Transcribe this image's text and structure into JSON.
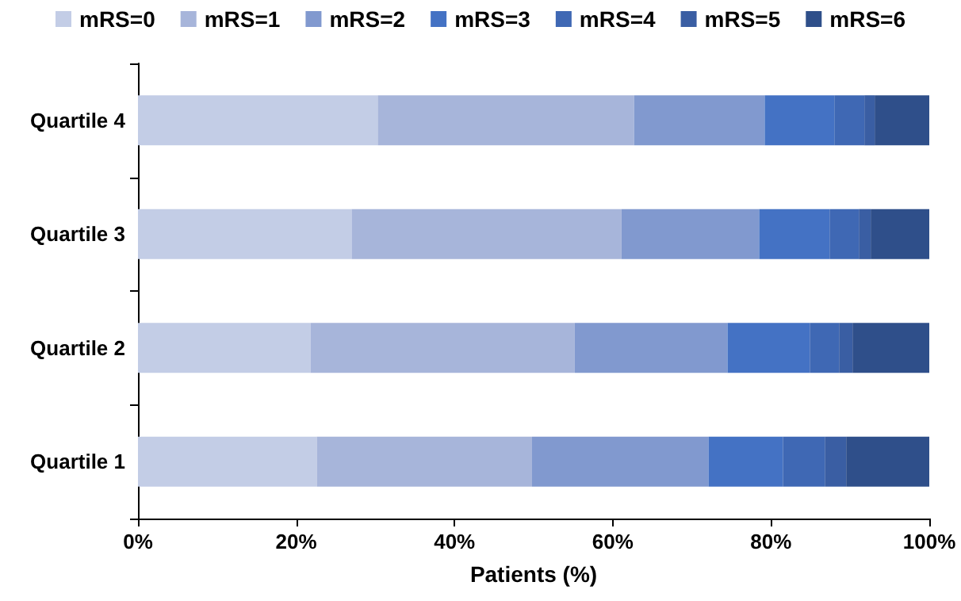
{
  "chart_data": {
    "type": "bar",
    "orientation": "horizontal",
    "stacked": true,
    "xlabel": "Patients (%)",
    "categories": [
      "Quartile 4",
      "Quartile 3",
      "Quartile 2",
      "Quartile 1"
    ],
    "series": [
      {
        "name": "mRS=0",
        "color": "#c3cde6",
        "values": [
          30.3,
          27.0,
          21.8,
          22.6
        ]
      },
      {
        "name": "mRS=1",
        "color": "#a7b5da",
        "values": [
          32.4,
          34.1,
          33.4,
          27.2
        ]
      },
      {
        "name": "mRS=2",
        "color": "#8199cf",
        "values": [
          16.5,
          17.4,
          19.3,
          22.3
        ]
      },
      {
        "name": "mRS=3",
        "color": "#4472c4",
        "values": [
          8.8,
          8.9,
          10.4,
          9.4
        ]
      },
      {
        "name": "mRS=4",
        "color": "#3f68b4",
        "values": [
          3.8,
          3.7,
          3.7,
          5.3
        ]
      },
      {
        "name": "mRS=5",
        "color": "#3a5ea3",
        "values": [
          1.3,
          1.5,
          1.7,
          2.7
        ]
      },
      {
        "name": "mRS=6",
        "color": "#2f4f8a",
        "values": [
          6.9,
          7.4,
          9.7,
          10.5
        ]
      }
    ],
    "xlim": [
      0,
      100
    ],
    "xticks": [
      {
        "value": 0,
        "label": "0%"
      },
      {
        "value": 20,
        "label": "20%"
      },
      {
        "value": 40,
        "label": "40%"
      },
      {
        "value": 60,
        "label": "60%"
      },
      {
        "value": 80,
        "label": "80%"
      },
      {
        "value": 100,
        "label": "100%"
      }
    ],
    "grid": false,
    "legend": "top"
  }
}
